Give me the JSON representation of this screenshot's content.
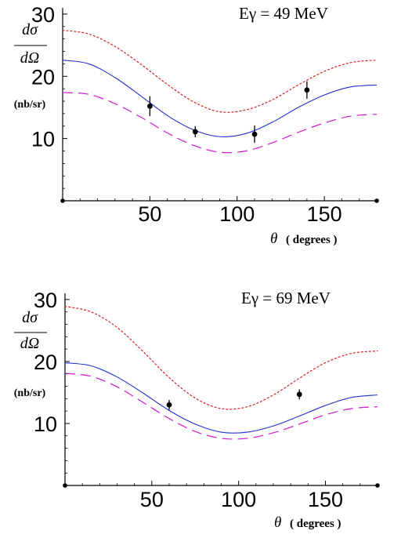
{
  "chart_data": [
    {
      "type": "line",
      "annotation": "Eγ = 49 MeV",
      "ylabel_top": "dσ",
      "ylabel_bottom": "dΩ",
      "yunit": "(nb/sr)",
      "xlabel_symbol": "θ",
      "xlabel_unit": "( degrees )",
      "xlim": [
        0,
        180
      ],
      "ylim": [
        0,
        31
      ],
      "xticks": [
        50,
        100,
        150
      ],
      "yticks": [
        10,
        20,
        30
      ],
      "grid": false,
      "x": [
        0,
        15,
        30,
        45,
        60,
        75,
        90,
        105,
        120,
        135,
        150,
        165,
        180
      ],
      "series": [
        {
          "style": "dotted",
          "color": "#d62020",
          "values": [
            27.4,
            26.8,
            24.8,
            21.9,
            18.7,
            15.9,
            14.3,
            14.6,
            16.2,
            18.6,
            20.8,
            22.2,
            22.6
          ]
        },
        {
          "style": "solid",
          "color": "#1f2fd0",
          "values": [
            22.6,
            22.0,
            19.8,
            16.8,
            13.7,
            11.4,
            10.3,
            10.8,
            12.6,
            15.0,
            17.0,
            18.3,
            18.6
          ]
        },
        {
          "style": "dashed",
          "color": "#d21ad2",
          "values": [
            17.4,
            17.1,
            15.6,
            13.4,
            10.9,
            8.9,
            7.8,
            8.0,
            9.3,
            11.0,
            12.5,
            13.6,
            13.9
          ]
        }
      ],
      "data_points": [
        {
          "x": 50,
          "y": 15.2,
          "err": 1.6
        },
        {
          "x": 76,
          "y": 11.1,
          "err": 0.9
        },
        {
          "x": 110,
          "y": 10.7,
          "err": 1.4
        },
        {
          "x": 140,
          "y": 17.8,
          "err": 1.4
        }
      ]
    },
    {
      "type": "line",
      "annotation": "Eγ = 69 MeV",
      "ylabel_top": "dσ",
      "ylabel_bottom": "dΩ",
      "yunit": "(nb/sr)",
      "xlabel_symbol": "θ",
      "xlabel_unit": "( degrees )",
      "xlim": [
        0,
        180
      ],
      "ylim": [
        0,
        31
      ],
      "xticks": [
        50,
        100,
        150
      ],
      "yticks": [
        10,
        20,
        30
      ],
      "grid": false,
      "x": [
        0,
        15,
        30,
        45,
        60,
        75,
        90,
        105,
        120,
        135,
        150,
        165,
        180
      ],
      "series": [
        {
          "style": "dotted",
          "color": "#d62020",
          "values": [
            28.9,
            28.0,
            25.5,
            21.6,
            17.4,
            14.1,
            12.4,
            12.7,
            14.6,
            17.3,
            19.8,
            21.3,
            21.7
          ]
        },
        {
          "style": "solid",
          "color": "#1f2fd0",
          "values": [
            19.8,
            19.3,
            17.5,
            14.9,
            12.1,
            9.9,
            8.6,
            8.6,
            9.6,
            11.2,
            12.9,
            14.2,
            14.6
          ]
        },
        {
          "style": "dashed",
          "color": "#d21ad2",
          "values": [
            18.1,
            17.6,
            15.9,
            13.4,
            10.8,
            8.7,
            7.6,
            7.6,
            8.5,
            9.9,
            11.4,
            12.4,
            12.7
          ]
        }
      ],
      "data_points": [
        {
          "x": 60,
          "y": 13.0,
          "err": 0.8
        },
        {
          "x": 135,
          "y": 14.7,
          "err": 0.8
        }
      ]
    }
  ]
}
